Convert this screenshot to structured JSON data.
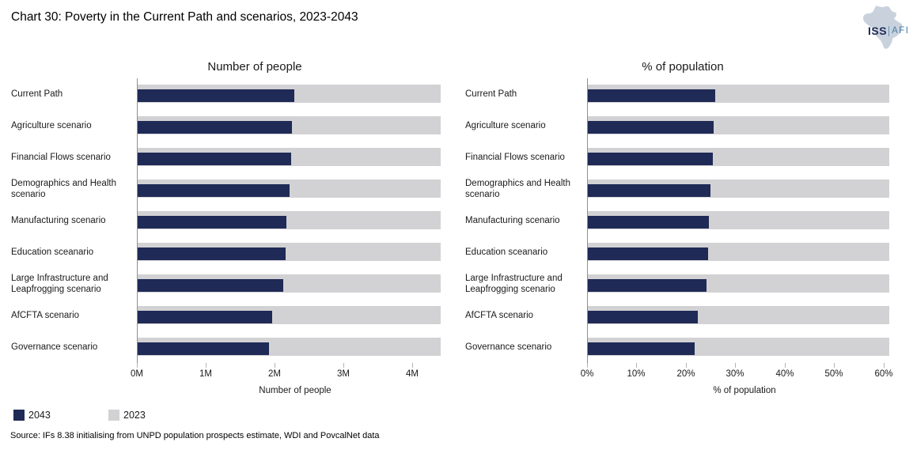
{
  "page": {
    "title": "Chart 30: Poverty in the Current Path and scenarios, 2023-2043"
  },
  "logo": {
    "iss": "ISS",
    "afi": "AFI",
    "map_color": "#c9d2dc"
  },
  "colors": {
    "navy": "#1f2a56",
    "gray": "#d2d2d4",
    "axis": "#8f8f8f",
    "tick": "#b3b3b3"
  },
  "legend": [
    {
      "label": "2043",
      "color": "#1f2a56"
    },
    {
      "label": "2023",
      "color": "#d2d2d4"
    }
  ],
  "source": "Source: IFs 8.38 initialising from UNPD population prospects estimate, WDI and PovcalNet data",
  "chart_data": [
    {
      "type": "bar",
      "orientation": "horizontal",
      "title": "Number of people",
      "xlabel": "Number of people",
      "grid": false,
      "legend_position": "bottom-left",
      "categories": [
        "Current Path",
        "Agriculture scenario",
        "Financial Flows scenario",
        "Demographics and Health scenario",
        "Manufacturing scenario",
        "Education sceanario",
        "Large Infrastructure and Leapfrogging scenario",
        "AfCFTA scenario",
        "Governance scenario"
      ],
      "series": [
        {
          "name": "2043",
          "color": "#1f2a56",
          "values": [
            2.28,
            2.24,
            2.23,
            2.2,
            2.16,
            2.15,
            2.11,
            1.95,
            1.91
          ]
        },
        {
          "name": "2023",
          "color": "#d2d2d4",
          "values": [
            4.4,
            4.4,
            4.4,
            4.4,
            4.4,
            4.4,
            4.4,
            4.4,
            4.4
          ]
        }
      ],
      "xlim": [
        0,
        4.4
      ],
      "xticks": [
        {
          "v": 0,
          "label": "0M"
        },
        {
          "v": 1,
          "label": "1M"
        },
        {
          "v": 2,
          "label": "2M"
        },
        {
          "v": 3,
          "label": "3M"
        },
        {
          "v": 4,
          "label": "4M"
        }
      ]
    },
    {
      "type": "bar",
      "orientation": "horizontal",
      "title": "% of population",
      "xlabel": "% of population",
      "grid": false,
      "legend_position": "bottom-left",
      "categories": [
        "Current Path",
        "Agriculture scenario",
        "Financial Flows scenario",
        "Demographics and Health scenario",
        "Manufacturing scenario",
        "Education sceanario",
        "Large Infrastructure and Leapfrogging scenario",
        "AfCFTA scenario",
        "Governance scenario"
      ],
      "series": [
        {
          "name": "2043",
          "color": "#1f2a56",
          "values": [
            25.8,
            25.4,
            25.3,
            24.8,
            24.5,
            24.3,
            24.0,
            22.2,
            21.6
          ]
        },
        {
          "name": "2023",
          "color": "#d2d2d4",
          "values": [
            61,
            61,
            61,
            61,
            61,
            61,
            61,
            61,
            61
          ]
        }
      ],
      "xlim": [
        0,
        62
      ],
      "xticks": [
        {
          "v": 0,
          "label": "0%"
        },
        {
          "v": 10,
          "label": "10%"
        },
        {
          "v": 20,
          "label": "20%"
        },
        {
          "v": 30,
          "label": "30%"
        },
        {
          "v": 40,
          "label": "40%"
        },
        {
          "v": 50,
          "label": "50%"
        },
        {
          "v": 60,
          "label": "60%"
        }
      ]
    }
  ]
}
